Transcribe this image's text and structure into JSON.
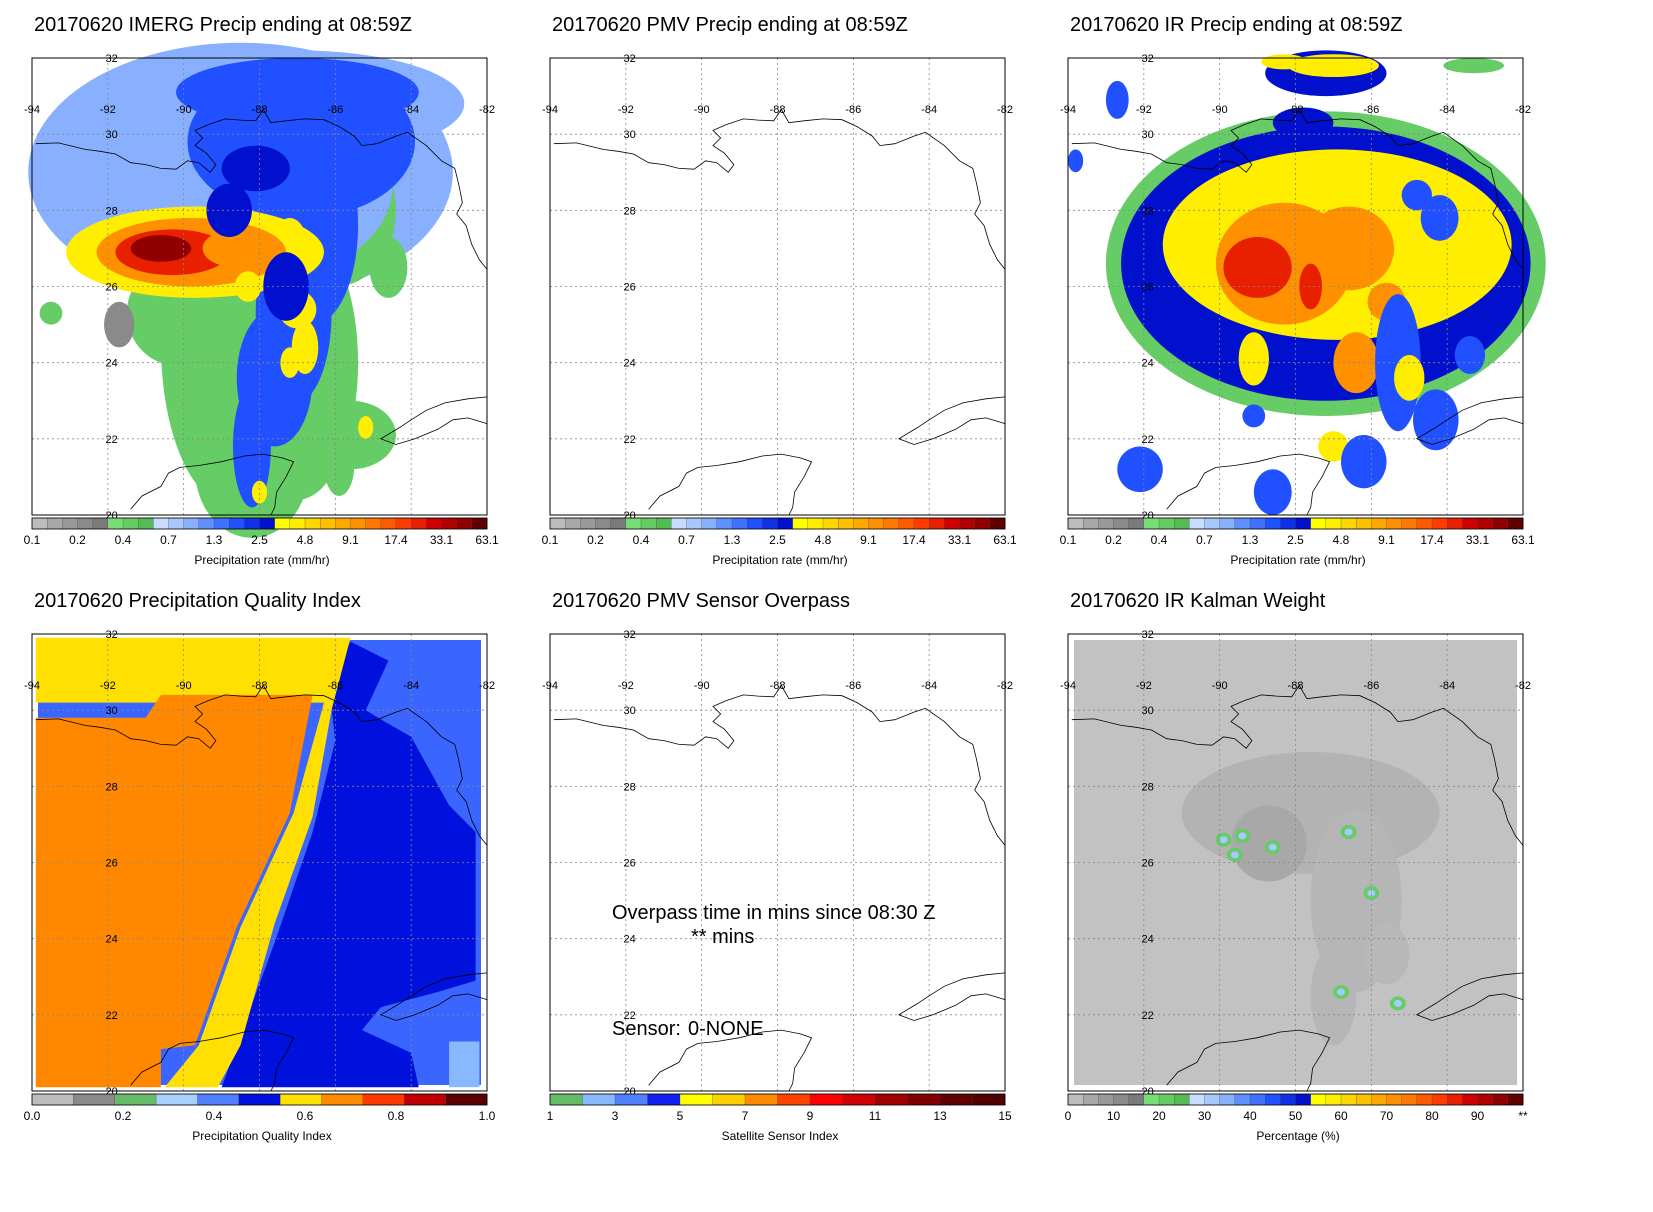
{
  "panels": [
    {
      "id": "imerg",
      "title": "20170620 IMERG Precip ending at 08:59Z",
      "colorbar": {
        "labels": [
          "0.1",
          "0.2",
          "0.4",
          "0.7",
          "1.3",
          "2.5",
          "4.8",
          "9.1",
          "17.4",
          "33.1",
          "63.1"
        ],
        "title": "Precipitation rate (mm/hr)"
      }
    },
    {
      "id": "pmv",
      "title": "20170620 PMV Precip ending at 08:59Z",
      "colorbar": {
        "labels": [
          "0.1",
          "0.2",
          "0.4",
          "0.7",
          "1.3",
          "2.5",
          "4.8",
          "9.1",
          "17.4",
          "33.1",
          "63.1"
        ],
        "title": "Precipitation rate (mm/hr)"
      }
    },
    {
      "id": "ir",
      "title": "20170620 IR Precip ending at 08:59Z",
      "colorbar": {
        "labels": [
          "0.1",
          "0.2",
          "0.4",
          "0.7",
          "1.3",
          "2.5",
          "4.8",
          "9.1",
          "17.4",
          "33.1",
          "63.1"
        ],
        "title": "Precipitation rate (mm/hr)"
      }
    },
    {
      "id": "pqi",
      "title": "20170620 Precipitation Quality Index",
      "colorbar": {
        "labels": [
          "0.0",
          "0.2",
          "0.4",
          "0.6",
          "0.8",
          "1.0"
        ],
        "title": "Precipitation Quality Index"
      }
    },
    {
      "id": "overpass",
      "title": "20170620 PMV Sensor Overpass",
      "annotations": {
        "line1": "Overpass time in mins since 08:30 Z",
        "line2": "** mins",
        "sensor_label": "Sensor:",
        "sensor_value": "0-NONE"
      },
      "colorbar": {
        "labels": [
          "1",
          "3",
          "5",
          "7",
          "9",
          "11",
          "13",
          "15"
        ],
        "title": "Satellite Sensor Index"
      }
    },
    {
      "id": "kalman",
      "title": "20170620 IR Kalman Weight",
      "colorbar": {
        "labels": [
          "0",
          "10",
          "20",
          "30",
          "40",
          "50",
          "60",
          "70",
          "80",
          "90",
          "**"
        ],
        "title": "Percentage (%)"
      }
    }
  ],
  "map": {
    "lon_labels": [
      "-94",
      "-92",
      "-90",
      "-88",
      "-86",
      "-84",
      "-82"
    ],
    "lat_labels": [
      "32",
      "30",
      "28",
      "26",
      "24",
      "22",
      "20"
    ],
    "lon_range": [
      -94,
      -82
    ],
    "lat_range": [
      20,
      32
    ],
    "gridlines": "dotted"
  },
  "colors": {
    "precip_scale": [
      "#bdbdbd",
      "#a9a9a9",
      "#999999",
      "#8a8a8a",
      "#7a7a7a",
      "#77dd77",
      "#66cc66",
      "#55bb55",
      "#c8dcff",
      "#a8c8ff",
      "#88b0ff",
      "#6090ff",
      "#4070ff",
      "#2050ff",
      "#1030e8",
      "#0010cc",
      "#ffff00",
      "#ffee00",
      "#ffd700",
      "#ffc000",
      "#ffa800",
      "#ff9000",
      "#ff7800",
      "#ff5a00",
      "#ff3c00",
      "#e82000",
      "#d00000",
      "#b00000",
      "#900000",
      "#600000"
    ],
    "pqi_scale": [
      "#bdbdbd",
      "#8a8a8a",
      "#66bb66",
      "#a8d0ff",
      "#5080ff",
      "#0010dd",
      "#ffe000",
      "#ff8c00",
      "#ff3800",
      "#c00000",
      "#5a0000"
    ],
    "sensor_scale": [
      "#66bb66",
      "#88b8ff",
      "#5080ff",
      "#1020ee",
      "#ffff00",
      "#ffd000",
      "#ff8c00",
      "#ff4400",
      "#ff0000",
      "#d00000",
      "#a00000",
      "#800000",
      "#600000",
      "#500000"
    ],
    "pqi_yellow": "#ffe000",
    "pqi_orange": "#ff8800",
    "pqi_navy": "#0010dd",
    "pqi_royal": "#3a66ff",
    "pqi_light": "#88b8ff",
    "kalman_background": "#c2c2c2"
  }
}
